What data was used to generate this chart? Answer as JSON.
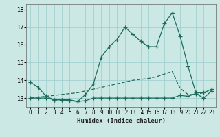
{
  "title": "",
  "xlabel": "Humidex (Indice chaleur)",
  "x": [
    0,
    1,
    2,
    3,
    4,
    5,
    6,
    7,
    8,
    9,
    10,
    11,
    12,
    13,
    14,
    15,
    16,
    17,
    18,
    19,
    20,
    21,
    22,
    23
  ],
  "line1": [
    13.9,
    13.6,
    13.1,
    12.9,
    12.9,
    12.9,
    12.8,
    13.2,
    13.8,
    15.3,
    15.9,
    16.3,
    17.0,
    16.6,
    16.2,
    15.9,
    15.9,
    17.2,
    17.8,
    16.5,
    14.8,
    13.3,
    13.3,
    13.5
  ],
  "line2": [
    13.0,
    13.0,
    13.0,
    12.9,
    12.9,
    12.85,
    12.8,
    12.85,
    13.0,
    13.0,
    13.0,
    13.0,
    13.0,
    13.0,
    13.0,
    13.0,
    13.0,
    13.0,
    13.0,
    13.15,
    13.1,
    13.25,
    13.0,
    13.4
  ],
  "line3": [
    13.0,
    13.05,
    13.1,
    13.15,
    13.2,
    13.25,
    13.3,
    13.4,
    13.5,
    13.6,
    13.7,
    13.8,
    13.9,
    14.0,
    14.05,
    14.1,
    14.2,
    14.35,
    14.5,
    13.55,
    13.2,
    13.2,
    13.3,
    13.4
  ],
  "line_color": "#1a6b5a",
  "bg_color": "#cce8e4",
  "grid_color": "#99cccc",
  "ylim": [
    12.5,
    18.3
  ],
  "yticks": [
    13,
    14,
    15,
    16,
    17,
    18
  ],
  "xlim": [
    -0.5,
    23.5
  ]
}
